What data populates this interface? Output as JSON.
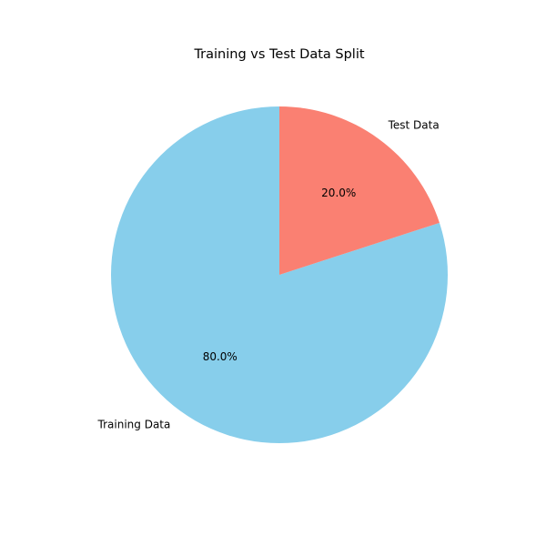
{
  "chart_data": {
    "type": "pie",
    "title": "Training vs Test Data Split",
    "start_angle_deg": 90,
    "direction": "counterclockwise",
    "slices": [
      {
        "label": "Training Data",
        "value": 80,
        "pct_label": "80.0%",
        "color": "#87CEEB"
      },
      {
        "label": "Test Data",
        "value": 20,
        "pct_label": "20.0%",
        "color": "#FA8072"
      }
    ]
  }
}
